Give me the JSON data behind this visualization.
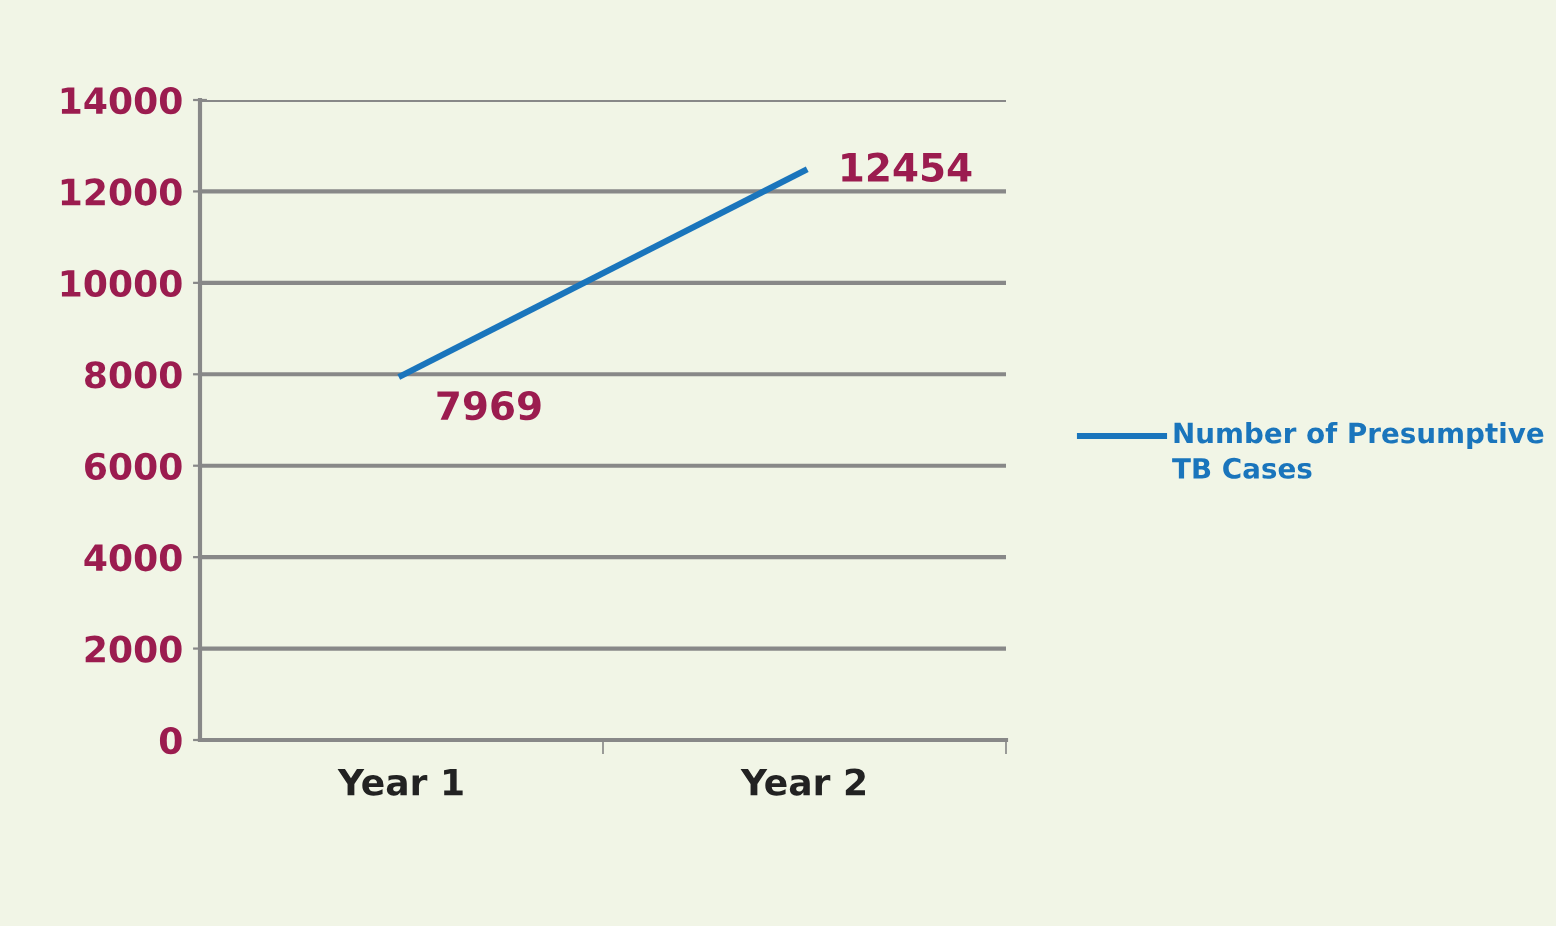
{
  "chart_data": {
    "type": "line",
    "categories": [
      "Year 1",
      "Year 2"
    ],
    "series": [
      {
        "name": "Number of Presumptive TB Cases",
        "color": "#1a75bc",
        "values": [
          7969,
          12454
        ]
      }
    ],
    "ylim": [
      0,
      14000
    ],
    "yticks": [
      0,
      2000,
      4000,
      6000,
      8000,
      10000,
      12000,
      14000
    ],
    "grid": "y",
    "legend": "right",
    "data_labels": true,
    "marker": "none",
    "line_style": "solid"
  }
}
